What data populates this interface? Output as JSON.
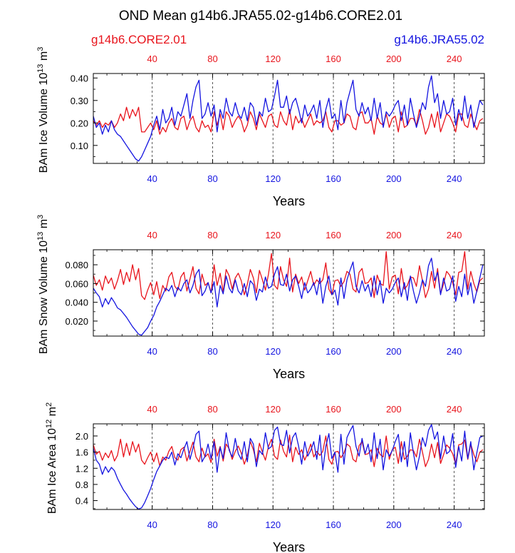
{
  "title": "OND Mean g14b6.JRA55.02-g14b6.CORE2.01",
  "legend_left": "g14b6.CORE2.01",
  "legend_right": "g14b6.JRA55.02",
  "colors": {
    "red": "#e8141c",
    "blue": "#1414e0",
    "text": "#000000"
  },
  "chart_data": [
    {
      "type": "line",
      "id": "ice-volume",
      "title": "",
      "ylabel": "BAm Ice Volume",
      "ylabel_exp_base": "10",
      "ylabel_exp_power": "13",
      "ylabel_unit_base": "m",
      "ylabel_unit_power": "3",
      "xlabel": "Years",
      "xlim": [
        1,
        260
      ],
      "ylim": [
        0.02,
        0.42
      ],
      "xticks": [
        40,
        80,
        120,
        160,
        200,
        240
      ],
      "xtick_labels": [
        "40",
        "80",
        "120",
        "160",
        "200",
        "240"
      ],
      "yticks": [
        0.1,
        0.2,
        0.3,
        0.4
      ],
      "ytick_labels": [
        "0.10",
        "0.20",
        "0.30",
        "0.40"
      ],
      "gridlines_x": [
        40,
        80,
        120,
        160,
        200,
        240
      ],
      "series": [
        {
          "name": "g14b6.CORE2.01",
          "color": "#e8141c",
          "x_start": 1,
          "x_step": 2,
          "values": [
            0.21,
            0.19,
            0.21,
            0.18,
            0.2,
            0.19,
            0.21,
            0.18,
            0.2,
            0.24,
            0.21,
            0.27,
            0.22,
            0.26,
            0.23,
            0.27,
            0.16,
            0.16,
            0.18,
            0.2,
            0.17,
            0.21,
            0.15,
            0.18,
            0.16,
            0.2,
            0.22,
            0.18,
            0.17,
            0.22,
            0.23,
            0.17,
            0.21,
            0.23,
            0.18,
            0.16,
            0.21,
            0.18,
            0.19,
            0.16,
            0.25,
            0.19,
            0.24,
            0.17,
            0.25,
            0.23,
            0.18,
            0.21,
            0.23,
            0.21,
            0.16,
            0.19,
            0.25,
            0.22,
            0.17,
            0.24,
            0.21,
            0.18,
            0.23,
            0.24,
            0.19,
            0.18,
            0.25,
            0.21,
            0.19,
            0.26,
            0.17,
            0.23,
            0.2,
            0.22,
            0.18,
            0.21,
            0.24,
            0.19,
            0.21,
            0.2,
            0.21,
            0.25,
            0.18,
            0.16,
            0.21,
            0.21,
            0.19,
            0.2,
            0.24,
            0.23,
            0.18,
            0.17,
            0.24,
            0.25,
            0.2,
            0.2,
            0.22,
            0.15,
            0.23,
            0.2,
            0.19,
            0.24,
            0.18,
            0.22,
            0.23,
            0.16,
            0.25,
            0.18,
            0.19,
            0.22,
            0.22,
            0.19,
            0.26,
            0.21,
            0.15,
            0.18,
            0.24,
            0.18,
            0.25,
            0.16,
            0.2,
            0.24,
            0.23,
            0.2,
            0.16,
            0.24,
            0.24,
            0.19,
            0.18,
            0.24,
            0.2,
            0.17,
            0.21,
            0.22
          ]
        },
        {
          "name": "g14b6.JRA55.02",
          "color": "#1414e0",
          "x_start": 1,
          "x_step": 2,
          "values": [
            0.23,
            0.18,
            0.2,
            0.15,
            0.19,
            0.16,
            0.21,
            0.17,
            0.15,
            0.14,
            0.12,
            0.1,
            0.08,
            0.06,
            0.04,
            0.03,
            0.05,
            0.08,
            0.11,
            0.14,
            0.19,
            0.23,
            0.17,
            0.26,
            0.2,
            0.22,
            0.27,
            0.19,
            0.25,
            0.23,
            0.28,
            0.33,
            0.22,
            0.3,
            0.36,
            0.39,
            0.22,
            0.24,
            0.29,
            0.23,
            0.28,
            0.16,
            0.26,
            0.22,
            0.31,
            0.25,
            0.23,
            0.29,
            0.24,
            0.22,
            0.27,
            0.21,
            0.29,
            0.27,
            0.19,
            0.25,
            0.23,
            0.31,
            0.25,
            0.26,
            0.32,
            0.39,
            0.27,
            0.27,
            0.32,
            0.24,
            0.29,
            0.31,
            0.26,
            0.2,
            0.28,
            0.23,
            0.25,
            0.28,
            0.22,
            0.3,
            0.18,
            0.26,
            0.31,
            0.22,
            0.24,
            0.17,
            0.3,
            0.2,
            0.29,
            0.34,
            0.39,
            0.26,
            0.23,
            0.29,
            0.24,
            0.27,
            0.21,
            0.31,
            0.22,
            0.29,
            0.18,
            0.25,
            0.23,
            0.25,
            0.28,
            0.3,
            0.21,
            0.28,
            0.19,
            0.31,
            0.24,
            0.18,
            0.23,
            0.29,
            0.26,
            0.36,
            0.41,
            0.29,
            0.33,
            0.22,
            0.3,
            0.24,
            0.25,
            0.31,
            0.19,
            0.26,
            0.21,
            0.32,
            0.22,
            0.28,
            0.18,
            0.24,
            0.3,
            0.28
          ]
        }
      ]
    },
    {
      "type": "line",
      "id": "snow-volume",
      "title": "",
      "ylabel": "BAm Snow Volume",
      "ylabel_exp_base": "10",
      "ylabel_exp_power": "13",
      "ylabel_unit_base": "m",
      "ylabel_unit_power": "3",
      "xlabel": "Years",
      "xlim": [
        1,
        260
      ],
      "ylim": [
        0.004,
        0.096
      ],
      "xticks": [
        40,
        80,
        120,
        160,
        200,
        240
      ],
      "xtick_labels": [
        "40",
        "80",
        "120",
        "160",
        "200",
        "240"
      ],
      "yticks": [
        0.02,
        0.04,
        0.06,
        0.08
      ],
      "ytick_labels": [
        "0.020",
        "0.040",
        "0.060",
        "0.080"
      ],
      "gridlines_x": [
        40,
        80,
        120,
        160,
        200,
        240
      ],
      "series": [
        {
          "name": "g14b6.CORE2.01",
          "color": "#e8141c",
          "x_start": 1,
          "x_step": 2,
          "values": [
            0.069,
            0.058,
            0.064,
            0.053,
            0.068,
            0.06,
            0.066,
            0.054,
            0.063,
            0.075,
            0.059,
            0.072,
            0.062,
            0.08,
            0.064,
            0.076,
            0.047,
            0.043,
            0.053,
            0.061,
            0.048,
            0.062,
            0.044,
            0.058,
            0.052,
            0.067,
            0.072,
            0.057,
            0.053,
            0.067,
            0.072,
            0.052,
            0.065,
            0.078,
            0.055,
            0.049,
            0.07,
            0.058,
            0.061,
            0.05,
            0.08,
            0.058,
            0.071,
            0.051,
            0.075,
            0.068,
            0.054,
            0.066,
            0.071,
            0.063,
            0.048,
            0.059,
            0.075,
            0.066,
            0.05,
            0.074,
            0.064,
            0.053,
            0.07,
            0.092,
            0.058,
            0.054,
            0.078,
            0.064,
            0.057,
            0.087,
            0.051,
            0.07,
            0.06,
            0.067,
            0.053,
            0.063,
            0.073,
            0.058,
            0.064,
            0.06,
            0.064,
            0.082,
            0.054,
            0.048,
            0.063,
            0.064,
            0.057,
            0.062,
            0.073,
            0.07,
            0.054,
            0.051,
            0.072,
            0.076,
            0.06,
            0.061,
            0.066,
            0.045,
            0.069,
            0.06,
            0.058,
            0.094,
            0.054,
            0.067,
            0.069,
            0.049,
            0.076,
            0.054,
            0.058,
            0.067,
            0.066,
            0.057,
            0.079,
            0.063,
            0.045,
            0.054,
            0.073,
            0.055,
            0.076,
            0.049,
            0.06,
            0.073,
            0.069,
            0.061,
            0.048,
            0.072,
            0.073,
            0.094,
            0.054,
            0.073,
            0.06,
            0.051,
            0.063,
            0.066
          ]
        },
        {
          "name": "g14b6.JRA55.02",
          "color": "#1414e0",
          "x_start": 1,
          "x_step": 2,
          "values": [
            0.055,
            0.05,
            0.046,
            0.035,
            0.044,
            0.038,
            0.045,
            0.04,
            0.034,
            0.032,
            0.028,
            0.024,
            0.019,
            0.014,
            0.01,
            0.006,
            0.005,
            0.009,
            0.013,
            0.02,
            0.026,
            0.035,
            0.041,
            0.048,
            0.055,
            0.052,
            0.058,
            0.046,
            0.056,
            0.052,
            0.06,
            0.064,
            0.05,
            0.058,
            0.07,
            0.075,
            0.047,
            0.052,
            0.061,
            0.05,
            0.062,
            0.035,
            0.058,
            0.049,
            0.068,
            0.055,
            0.05,
            0.064,
            0.052,
            0.048,
            0.06,
            0.046,
            0.063,
            0.059,
            0.042,
            0.054,
            0.051,
            0.067,
            0.055,
            0.057,
            0.07,
            0.078,
            0.059,
            0.058,
            0.07,
            0.052,
            0.064,
            0.068,
            0.057,
            0.044,
            0.061,
            0.05,
            0.054,
            0.061,
            0.048,
            0.066,
            0.039,
            0.057,
            0.068,
            0.048,
            0.053,
            0.037,
            0.066,
            0.044,
            0.064,
            0.074,
            0.083,
            0.057,
            0.05,
            0.063,
            0.052,
            0.059,
            0.046,
            0.068,
            0.048,
            0.063,
            0.039,
            0.055,
            0.05,
            0.054,
            0.061,
            0.066,
            0.046,
            0.061,
            0.042,
            0.068,
            0.052,
            0.039,
            0.05,
            0.064,
            0.057,
            0.079,
            0.087,
            0.063,
            0.072,
            0.048,
            0.066,
            0.052,
            0.054,
            0.068,
            0.041,
            0.057,
            0.046,
            0.07,
            0.048,
            0.061,
            0.039,
            0.052,
            0.066,
            0.08
          ]
        }
      ]
    },
    {
      "type": "line",
      "id": "ice-area",
      "title": "",
      "ylabel": "BAm Ice Area",
      "ylabel_exp_base": "10",
      "ylabel_exp_power": "12",
      "ylabel_unit_base": "m",
      "ylabel_unit_power": "2",
      "xlabel": "Years",
      "xlim": [
        1,
        260
      ],
      "ylim": [
        0.18,
        2.3
      ],
      "xticks": [
        40,
        80,
        120,
        160,
        200,
        240
      ],
      "xtick_labels": [
        "40",
        "80",
        "120",
        "160",
        "200",
        "240"
      ],
      "yticks": [
        0.4,
        0.8,
        1.2,
        1.6,
        2.0
      ],
      "ytick_labels": [
        "0.4",
        "0.8",
        "1.2",
        "1.6",
        "2.0"
      ],
      "gridlines_x": [
        40,
        80,
        120,
        160,
        200,
        240
      ],
      "series": [
        {
          "name": "g14b6.CORE2.01",
          "color": "#e8141c",
          "x_start": 1,
          "x_step": 2,
          "values": [
            1.78,
            1.55,
            1.62,
            1.4,
            1.58,
            1.46,
            1.64,
            1.38,
            1.52,
            1.92,
            1.48,
            1.82,
            1.52,
            1.86,
            1.6,
            1.8,
            1.4,
            1.3,
            1.46,
            1.6,
            1.36,
            1.58,
            1.26,
            1.48,
            1.4,
            1.62,
            1.74,
            1.46,
            1.4,
            1.66,
            1.72,
            1.38,
            1.62,
            1.85,
            1.48,
            1.36,
            1.7,
            1.48,
            1.56,
            1.34,
            1.92,
            1.5,
            1.74,
            1.38,
            1.8,
            1.68,
            1.42,
            1.62,
            1.75,
            1.58,
            1.3,
            1.52,
            1.86,
            1.66,
            1.36,
            1.82,
            1.6,
            1.4,
            1.74,
            1.92,
            1.5,
            1.42,
            1.9,
            1.62,
            1.48,
            2.02,
            1.36,
            1.72,
            1.54,
            1.66,
            1.4,
            1.58,
            1.8,
            1.48,
            1.62,
            1.52,
            1.62,
            2.0,
            1.42,
            1.3,
            1.6,
            1.62,
            1.46,
            1.58,
            1.8,
            1.74,
            1.42,
            1.36,
            1.76,
            1.86,
            1.54,
            1.56,
            1.66,
            1.24,
            1.7,
            1.54,
            1.48,
            2.0,
            1.42,
            1.66,
            1.72,
            1.32,
            1.86,
            1.42,
            1.5,
            1.66,
            1.64,
            1.48,
            1.92,
            1.6,
            1.24,
            1.42,
            1.8,
            1.46,
            1.84,
            1.32,
            1.54,
            1.78,
            1.7,
            1.56,
            1.3,
            1.78,
            1.8,
            1.9,
            1.42,
            1.8,
            1.54,
            1.36,
            1.6,
            1.66
          ]
        },
        {
          "name": "g14b6.JRA55.02",
          "color": "#1414e0",
          "x_start": 1,
          "x_step": 2,
          "values": [
            1.7,
            1.4,
            1.3,
            1.05,
            1.24,
            1.1,
            1.22,
            1.14,
            0.95,
            0.8,
            0.66,
            0.56,
            0.44,
            0.34,
            0.25,
            0.19,
            0.22,
            0.35,
            0.52,
            0.7,
            0.92,
            1.12,
            1.26,
            1.4,
            1.48,
            1.44,
            1.6,
            1.28,
            1.56,
            1.46,
            1.68,
            1.86,
            1.42,
            1.7,
            2.04,
            2.12,
            1.36,
            1.5,
            1.8,
            1.44,
            1.86,
            1.1,
            1.72,
            1.44,
            2.08,
            1.64,
            1.48,
            1.94,
            1.56,
            1.42,
            1.86,
            1.36,
            1.94,
            1.8,
            1.24,
            1.64,
            1.54,
            2.08,
            1.68,
            1.74,
            2.14,
            2.22,
            1.8,
            1.76,
            2.14,
            1.58,
            1.96,
            2.08,
            1.74,
            1.3,
            1.86,
            1.5,
            1.64,
            1.86,
            1.42,
            2.02,
            1.16,
            1.74,
            2.06,
            1.44,
            1.6,
            1.1,
            2.04,
            1.3,
            1.96,
            2.12,
            2.26,
            1.74,
            1.5,
            1.94,
            1.56,
            1.8,
            1.36,
            2.08,
            1.44,
            1.92,
            1.16,
            1.66,
            1.5,
            1.64,
            1.86,
            2.04,
            1.36,
            1.86,
            1.24,
            2.08,
            1.58,
            1.16,
            1.5,
            1.96,
            1.74,
            2.14,
            2.28,
            1.92,
            2.1,
            1.44,
            2.0,
            1.56,
            1.62,
            2.06,
            1.22,
            1.74,
            1.38,
            2.12,
            1.44,
            1.86,
            1.16,
            1.58,
            1.96,
            2.0
          ]
        }
      ]
    }
  ]
}
